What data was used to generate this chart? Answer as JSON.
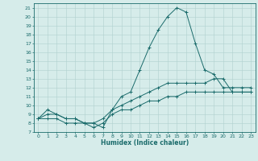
{
  "xlabel": "Humidex (Indice chaleur)",
  "ylabel": "",
  "background_color": "#d6ecea",
  "grid_color": "#b0d0ce",
  "line_color": "#1a6b6b",
  "xlim": [
    -0.5,
    23.5
  ],
  "ylim": [
    7,
    21.5
  ],
  "xticks": [
    0,
    1,
    2,
    3,
    4,
    5,
    6,
    7,
    8,
    9,
    10,
    11,
    12,
    13,
    14,
    15,
    16,
    17,
    18,
    19,
    20,
    21,
    22,
    23
  ],
  "yticks": [
    7,
    8,
    9,
    10,
    11,
    12,
    13,
    14,
    15,
    16,
    17,
    18,
    19,
    20,
    21
  ],
  "series1_x": [
    0,
    1,
    2,
    3,
    4,
    5,
    6,
    7,
    8,
    9,
    10,
    11,
    12,
    13,
    14,
    15,
    16,
    17,
    18,
    19,
    20,
    21,
    22,
    23
  ],
  "series1_y": [
    8.5,
    9.5,
    9.0,
    8.5,
    8.5,
    8.0,
    8.0,
    7.5,
    9.5,
    11.0,
    11.5,
    14.0,
    16.5,
    18.5,
    20.0,
    21.0,
    20.5,
    17.0,
    14.0,
    13.5,
    12.0,
    12.0,
    12.0,
    12.0
  ],
  "series2_x": [
    0,
    1,
    2,
    3,
    4,
    5,
    6,
    7,
    8,
    9,
    10,
    11,
    12,
    13,
    14,
    15,
    16,
    17,
    18,
    19,
    20,
    21,
    22,
    23
  ],
  "series2_y": [
    8.5,
    9.0,
    9.0,
    8.5,
    8.5,
    8.0,
    8.0,
    8.5,
    9.5,
    10.0,
    10.5,
    11.0,
    11.5,
    12.0,
    12.5,
    12.5,
    12.5,
    12.5,
    12.5,
    13.0,
    13.0,
    11.5,
    11.5,
    11.5
  ],
  "series3_x": [
    0,
    1,
    2,
    3,
    4,
    5,
    6,
    7,
    8,
    9,
    10,
    11,
    12,
    13,
    14,
    15,
    16,
    17,
    18,
    19,
    20,
    21,
    22,
    23
  ],
  "series3_y": [
    8.5,
    8.5,
    8.5,
    8.0,
    8.0,
    8.0,
    7.5,
    8.0,
    9.0,
    9.5,
    9.5,
    10.0,
    10.5,
    10.5,
    11.0,
    11.0,
    11.5,
    11.5,
    11.5,
    11.5,
    11.5,
    11.5,
    11.5,
    11.5
  ],
  "marker": "+",
  "tick_fontsize": 4.5,
  "xlabel_fontsize": 5.5
}
